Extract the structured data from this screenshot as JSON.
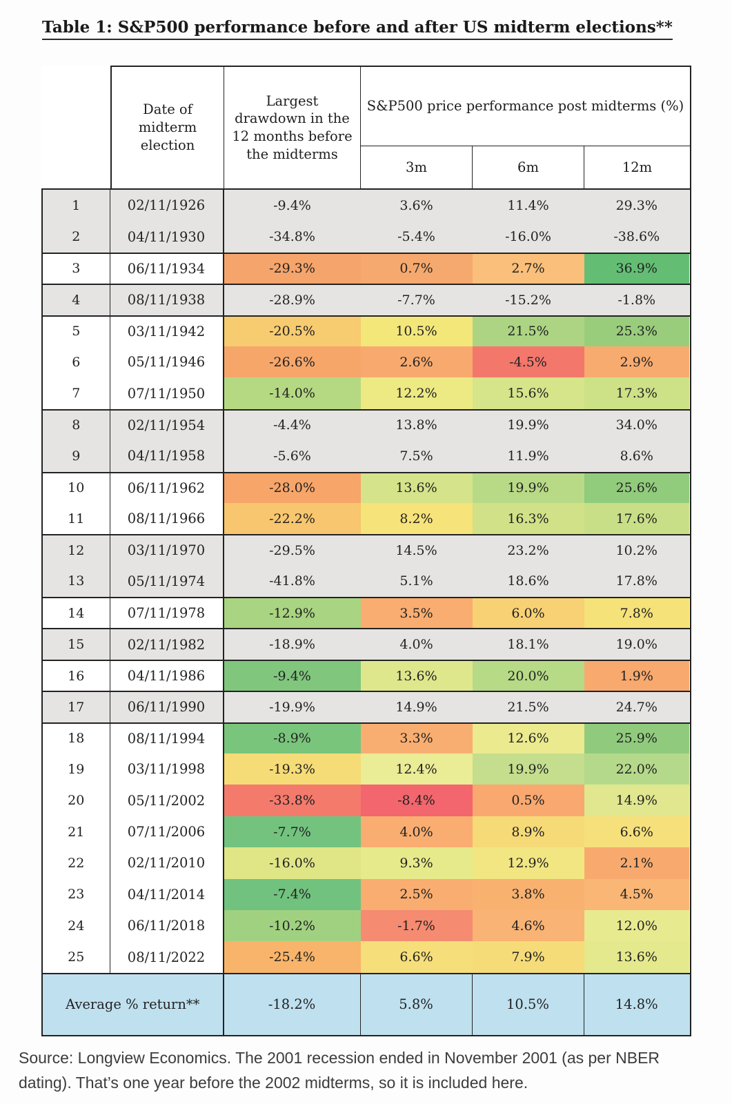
{
  "title": "Table 1: S&P500 performance before and after US midterm elections**",
  "table": {
    "header": {
      "date_col": "Date of midterm election",
      "drawdown_col": "Largest drawdown in the 12 months before the midterms",
      "performance_group": "S&P500 price performance post midterms (%)",
      "sub_cols": [
        "3m",
        "6m",
        "12m"
      ]
    },
    "rows": [
      {
        "n": "1",
        "date": "02/11/1926",
        "values": [
          "-9.4%",
          "3.6%",
          "11.4%",
          "29.3%"
        ],
        "gray": true,
        "group_start": true
      },
      {
        "n": "2",
        "date": "04/11/1930",
        "values": [
          "-34.8%",
          "-5.4%",
          "-16.0%",
          "-38.6%"
        ],
        "gray": true,
        "group_start": false
      },
      {
        "n": "3",
        "date": "06/11/1934",
        "values": [
          "-29.3%",
          "0.7%",
          "2.7%",
          "36.9%"
        ],
        "gray": false,
        "group_start": true,
        "colors": [
          "#F5A46B",
          "#F6A96E",
          "#FABF7A",
          "#63BE74"
        ]
      },
      {
        "n": "4",
        "date": "08/11/1938",
        "values": [
          "-28.9%",
          "-7.7%",
          "-15.2%",
          "-1.8%"
        ],
        "gray": true,
        "group_start": true
      },
      {
        "n": "5",
        "date": "03/11/1942",
        "values": [
          "-20.5%",
          "10.5%",
          "21.5%",
          "25.3%"
        ],
        "gray": false,
        "group_start": true,
        "colors": [
          "#F7CB6F",
          "#F3E77A",
          "#ACD483",
          "#99CD7C"
        ]
      },
      {
        "n": "6",
        "date": "05/11/1946",
        "values": [
          "-26.6%",
          "2.6%",
          "-4.5%",
          "2.9%"
        ],
        "gray": false,
        "group_start": false,
        "colors": [
          "#F7A66A",
          "#F8AA6E",
          "#F4776C",
          "#F8AB6F"
        ]
      },
      {
        "n": "7",
        "date": "07/11/1950",
        "values": [
          "-14.0%",
          "12.2%",
          "15.6%",
          "17.3%"
        ],
        "gray": false,
        "group_start": false,
        "colors": [
          "#B5D983",
          "#EDEA83",
          "#D6E48A",
          "#CDE187"
        ]
      },
      {
        "n": "8",
        "date": "02/11/1954",
        "values": [
          "-4.4%",
          "13.8%",
          "19.9%",
          "34.0%"
        ],
        "gray": true,
        "group_start": true
      },
      {
        "n": "9",
        "date": "04/11/1958",
        "values": [
          "-5.6%",
          "7.5%",
          "11.9%",
          "8.6%"
        ],
        "gray": true,
        "group_start": false
      },
      {
        "n": "10",
        "date": "06/11/1962",
        "values": [
          "-28.0%",
          "13.6%",
          "19.9%",
          "25.6%"
        ],
        "gray": false,
        "group_start": true,
        "colors": [
          "#F7A569",
          "#D5E38A",
          "#B8DA87",
          "#91CB7C"
        ]
      },
      {
        "n": "11",
        "date": "08/11/1966",
        "values": [
          "-22.2%",
          "8.2%",
          "16.3%",
          "17.6%"
        ],
        "gray": false,
        "group_start": false,
        "colors": [
          "#F8C66E",
          "#F6E37A",
          "#D1E187",
          "#C9DF87"
        ]
      },
      {
        "n": "12",
        "date": "03/11/1970",
        "values": [
          "-29.5%",
          "14.5%",
          "23.2%",
          "10.2%"
        ],
        "gray": true,
        "group_start": true
      },
      {
        "n": "13",
        "date": "05/11/1974",
        "values": [
          "-41.8%",
          "5.1%",
          "18.6%",
          "17.8%"
        ],
        "gray": true,
        "group_start": false
      },
      {
        "n": "14",
        "date": "07/11/1978",
        "values": [
          "-12.9%",
          "3.5%",
          "6.0%",
          "7.8%"
        ],
        "gray": false,
        "group_start": true,
        "colors": [
          "#A9D481",
          "#F9AD70",
          "#F8D174",
          "#F5E279"
        ]
      },
      {
        "n": "15",
        "date": "02/11/1982",
        "values": [
          "-18.9%",
          "4.0%",
          "18.1%",
          "19.0%"
        ],
        "gray": true,
        "group_start": true
      },
      {
        "n": "16",
        "date": "04/11/1986",
        "values": [
          "-9.4%",
          "13.6%",
          "20.0%",
          "1.9%"
        ],
        "gray": false,
        "group_start": true,
        "colors": [
          "#80C67D",
          "#DFE78D",
          "#B7DA87",
          "#F8A96E"
        ]
      },
      {
        "n": "17",
        "date": "06/11/1990",
        "values": [
          "-19.9%",
          "14.9%",
          "21.5%",
          "24.7%"
        ],
        "gray": true,
        "group_start": true
      },
      {
        "n": "18",
        "date": "08/11/1994",
        "values": [
          "-8.9%",
          "3.3%",
          "12.6%",
          "25.9%"
        ],
        "gray": false,
        "group_start": true,
        "colors": [
          "#7AC57C",
          "#F9AE71",
          "#EBEA8F",
          "#90CB7D"
        ]
      },
      {
        "n": "19",
        "date": "03/11/1998",
        "values": [
          "-19.3%",
          "12.4%",
          "19.9%",
          "22.0%"
        ],
        "gray": false,
        "group_start": false,
        "colors": [
          "#F6DC77",
          "#EAEC96",
          "#C4DE8D",
          "#B5D98A"
        ]
      },
      {
        "n": "20",
        "date": "05/11/2002",
        "values": [
          "-33.8%",
          "-8.4%",
          "0.5%",
          "14.9%"
        ],
        "gray": false,
        "group_start": false,
        "colors": [
          "#F47A6C",
          "#F3666D",
          "#F9A86F",
          "#E0E78F"
        ]
      },
      {
        "n": "21",
        "date": "07/11/2006",
        "values": [
          "-7.7%",
          "4.0%",
          "8.9%",
          "6.6%"
        ],
        "gray": false,
        "group_start": false,
        "colors": [
          "#73C37F",
          "#F9AD70",
          "#F6DA78",
          "#F6E07B"
        ]
      },
      {
        "n": "22",
        "date": "02/11/2010",
        "values": [
          "-16.0%",
          "9.3%",
          "12.9%",
          "2.1%"
        ],
        "gray": false,
        "group_start": false,
        "colors": [
          "#E0E686",
          "#E7EA8A",
          "#F1E681",
          "#F8AA6E"
        ]
      },
      {
        "n": "23",
        "date": "04/11/2014",
        "values": [
          "-7.4%",
          "2.5%",
          "3.8%",
          "4.5%"
        ],
        "gray": false,
        "group_start": false,
        "colors": [
          "#71C27E",
          "#F9AD70",
          "#F9B170",
          "#F9B674"
        ]
      },
      {
        "n": "24",
        "date": "06/11/2018",
        "values": [
          "-10.2%",
          "-1.7%",
          "4.6%",
          "12.0%"
        ],
        "gray": false,
        "group_start": false,
        "colors": [
          "#A0D181",
          "#F58B71",
          "#F9B374",
          "#E7EA8F"
        ]
      },
      {
        "n": "25",
        "date": "08/11/2022",
        "values": [
          "-25.4%",
          "6.6%",
          "7.9%",
          "13.6%"
        ],
        "gray": false,
        "group_start": false,
        "colors": [
          "#F8B46A",
          "#F6DE7A",
          "#F6DC78",
          "#E4E98D"
        ]
      }
    ],
    "average": {
      "label": "Average % return**",
      "values": [
        "-18.2%",
        "5.8%",
        "10.5%",
        "14.8%"
      ]
    }
  },
  "colors": {
    "gray_row": "#E5E4E2",
    "average_bg": "#BFE0EF",
    "border": "#222222",
    "white_row": "#FFFFFF"
  },
  "source": "Source: Longview Economics. The 2001 recession ended in November 2001 (as per NBER dating). That’s one year before the 2002 midterms, so it is included here."
}
